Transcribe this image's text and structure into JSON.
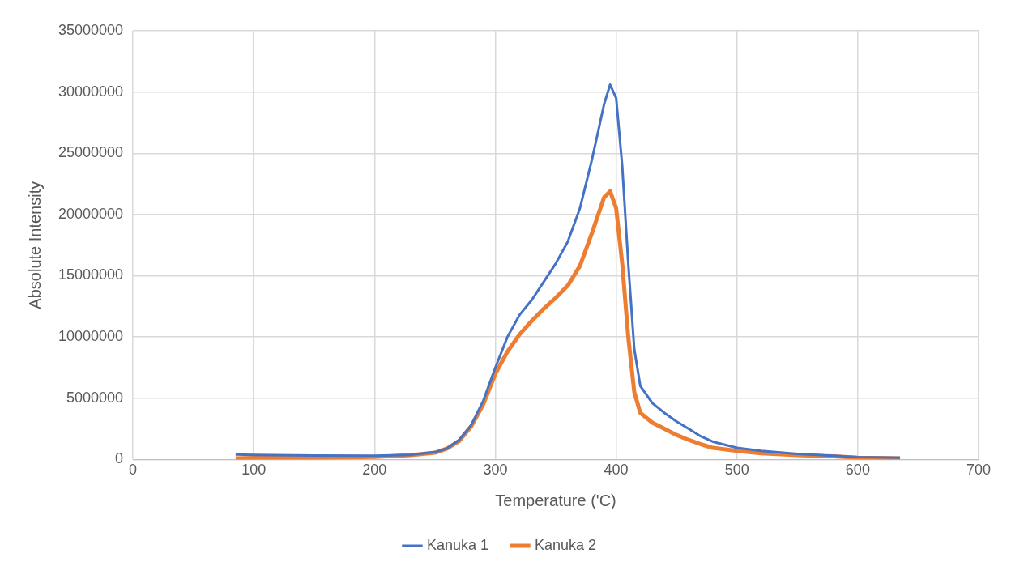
{
  "chart_data": {
    "type": "line",
    "xlabel": "Temperature ('C)",
    "ylabel": "Absolute Intensity",
    "xlim": [
      0,
      700
    ],
    "xticks": [
      0,
      100,
      200,
      300,
      400,
      500,
      600,
      700
    ],
    "ylim": [
      0,
      35000000
    ],
    "yticks": [
      0,
      5000000,
      10000000,
      15000000,
      20000000,
      25000000,
      30000000,
      35000000
    ],
    "grid": true,
    "legend": "bottom",
    "marker": "none",
    "line_style": "solid",
    "x": [
      85,
      100,
      150,
      200,
      230,
      250,
      260,
      270,
      280,
      290,
      300,
      310,
      320,
      330,
      340,
      350,
      360,
      370,
      380,
      390,
      395,
      400,
      405,
      410,
      415,
      420,
      430,
      440,
      450,
      460,
      470,
      480,
      500,
      520,
      550,
      580,
      600,
      635
    ],
    "series": [
      {
        "name": "Kanuka 1",
        "color": "#4472c4",
        "values": [
          400000,
          380000,
          330000,
          300000,
          380000,
          600000,
          900000,
          1600000,
          2800000,
          4800000,
          7500000,
          10000000,
          11800000,
          13000000,
          14500000,
          16000000,
          17800000,
          20500000,
          24500000,
          29000000,
          30600000,
          29500000,
          24000000,
          16000000,
          9000000,
          6000000,
          4600000,
          3800000,
          3100000,
          2500000,
          1900000,
          1450000,
          950000,
          700000,
          450000,
          300000,
          200000,
          150000
        ]
      },
      {
        "name": "Kanuka 2",
        "color": "#ed7d31",
        "values": [
          100000,
          120000,
          150000,
          200000,
          350000,
          550000,
          900000,
          1500000,
          2700000,
          4500000,
          7000000,
          8800000,
          10200000,
          11300000,
          12300000,
          13200000,
          14200000,
          15800000,
          18500000,
          21400000,
          21900000,
          20500000,
          16000000,
          10000000,
          5500000,
          3800000,
          3000000,
          2500000,
          2000000,
          1600000,
          1250000,
          950000,
          700000,
          500000,
          350000,
          250000,
          150000,
          100000
        ]
      }
    ]
  }
}
